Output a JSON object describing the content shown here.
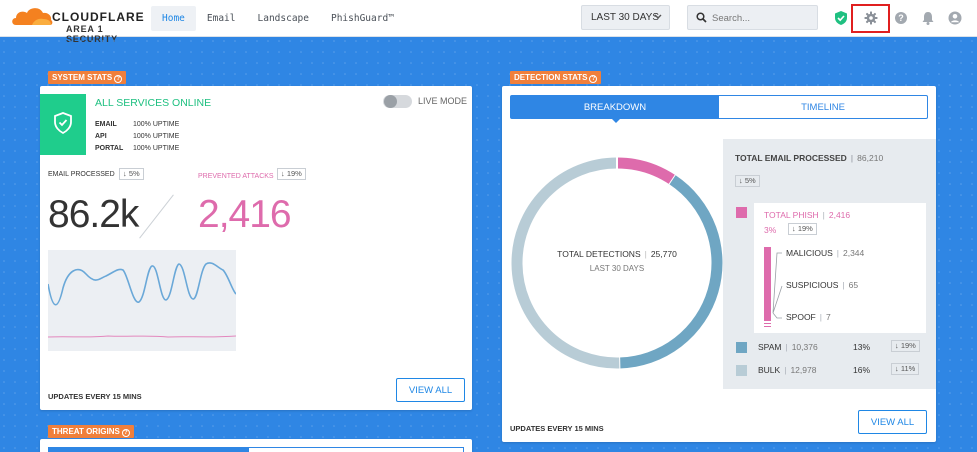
{
  "brand": {
    "name": "CLOUDFLARE",
    "product": "AREA 1 SECURITY"
  },
  "nav": {
    "tabs": [
      "Home",
      "Email",
      "Landscape",
      "PhishGuard™"
    ],
    "active": 0
  },
  "range": {
    "label": "LAST 30 DAYS"
  },
  "search": {
    "placeholder": "Search..."
  },
  "icons": {
    "shield": "shield-check-icon",
    "settings": "gear-icon",
    "help": "help-icon",
    "notifications": "bell-icon",
    "account": "user-icon"
  },
  "colors": {
    "accent": "#1f87e5",
    "online": "#1fcd8c",
    "phish": "#de6bac",
    "spam": "#6fa6c3",
    "bulk": "#b8ccd6",
    "tag": "#f07f3b",
    "highlight": "#e01f1f"
  },
  "system_stats": {
    "tag": "SYSTEM STATS",
    "status": "ALL SERVICES ONLINE",
    "live_mode_label": "LIVE MODE",
    "live_mode_on": false,
    "uptime": [
      {
        "name": "EMAIL",
        "value": "100% UPTIME"
      },
      {
        "name": "API",
        "value": "100% UPTIME"
      },
      {
        "name": "PORTAL",
        "value": "100% UPTIME"
      }
    ],
    "email_processed_label": "EMAIL PROCESSED",
    "email_processed_change": "↓ 5%",
    "email_processed_value": "86.2k",
    "prevented_label": "PREVENTED ATTACKS",
    "prevented_change": "↓ 19%",
    "prevented_value": "2,416",
    "updates": "UPDATES EVERY 15 MINS",
    "view_all": "VIEW ALL"
  },
  "threat_origins": {
    "tag": "THREAT ORIGINS"
  },
  "detection_stats": {
    "tag": "DETECTION STATS",
    "tabs": [
      "BREAKDOWN",
      "TIMELINE"
    ],
    "active_tab": 0,
    "total_label": "TOTAL DETECTIONS",
    "total_value": "25,770",
    "period": "LAST 30 DAYS",
    "email_total_label": "TOTAL EMAIL PROCESSED",
    "email_total_value": "86,210",
    "email_total_change": "↓ 5%",
    "phish": {
      "label": "TOTAL PHISH",
      "value": "2,416",
      "pct": "3%",
      "change": "↓ 19%"
    },
    "phish_breakdown": [
      {
        "label": "MALICIOUS",
        "value": "2,344"
      },
      {
        "label": "SUSPICIOUS",
        "value": "65"
      },
      {
        "label": "SPOOF",
        "value": "7"
      }
    ],
    "spam": {
      "label": "SPAM",
      "value": "10,376",
      "pct": "13%",
      "change": "↓ 19%"
    },
    "bulk": {
      "label": "BULK",
      "value": "12,978",
      "pct": "16%",
      "change": "↓ 11%"
    },
    "updates": "UPDATES EVERY 15 MINS",
    "view_all": "VIEW ALL"
  }
}
